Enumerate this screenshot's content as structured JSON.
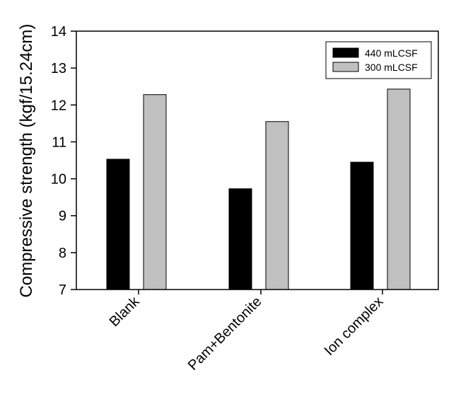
{
  "chart_data": {
    "type": "bar",
    "categories": [
      "Blank",
      "Pam+Bentonite",
      "Ion complex"
    ],
    "series": [
      {
        "name": "440 mLCSF",
        "values": [
          10.53,
          9.73,
          10.45
        ],
        "color": "#000000"
      },
      {
        "name": "300 mLCSF",
        "values": [
          12.28,
          11.55,
          12.43
        ],
        "color": "#c0c0c0"
      }
    ],
    "ylabel": "Compressive strength (kgf/15.24cm)",
    "xlabel": "",
    "ylim": [
      7,
      14
    ],
    "yticks": [
      7,
      8,
      9,
      10,
      11,
      12,
      13,
      14
    ],
    "grid": false,
    "legend_position": "top-right"
  }
}
